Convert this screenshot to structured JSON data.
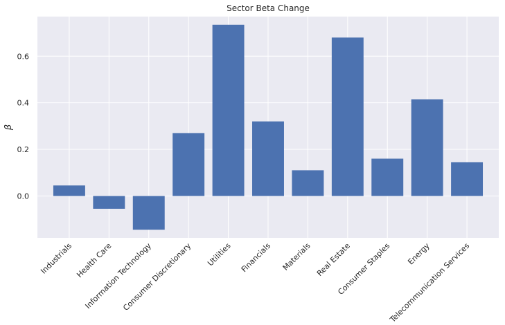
{
  "chart_data": {
    "type": "bar",
    "title": "Sector Beta Change",
    "xlabel": "",
    "ylabel": "β",
    "categories": [
      "Industrials",
      "Health Care",
      "Information Technology",
      "Consumer Discretionary",
      "Utilities",
      "Financials",
      "Materials",
      "Real Estate",
      "Consumer Staples",
      "Energy",
      "Telecommunication Services"
    ],
    "values": [
      0.045,
      -0.055,
      -0.145,
      0.27,
      0.735,
      0.32,
      0.11,
      0.68,
      0.16,
      0.415,
      0.145
    ],
    "ylim": [
      -0.18,
      0.77
    ],
    "yticks": [
      0.0,
      0.2,
      0.4,
      0.6
    ],
    "ytick_labels": [
      "0.0",
      "0.2",
      "0.4",
      "0.6"
    ],
    "grid": true,
    "colors": {
      "bar": "#4c72b0",
      "background": "#eaeaf2",
      "grid": "#ffffff"
    }
  }
}
